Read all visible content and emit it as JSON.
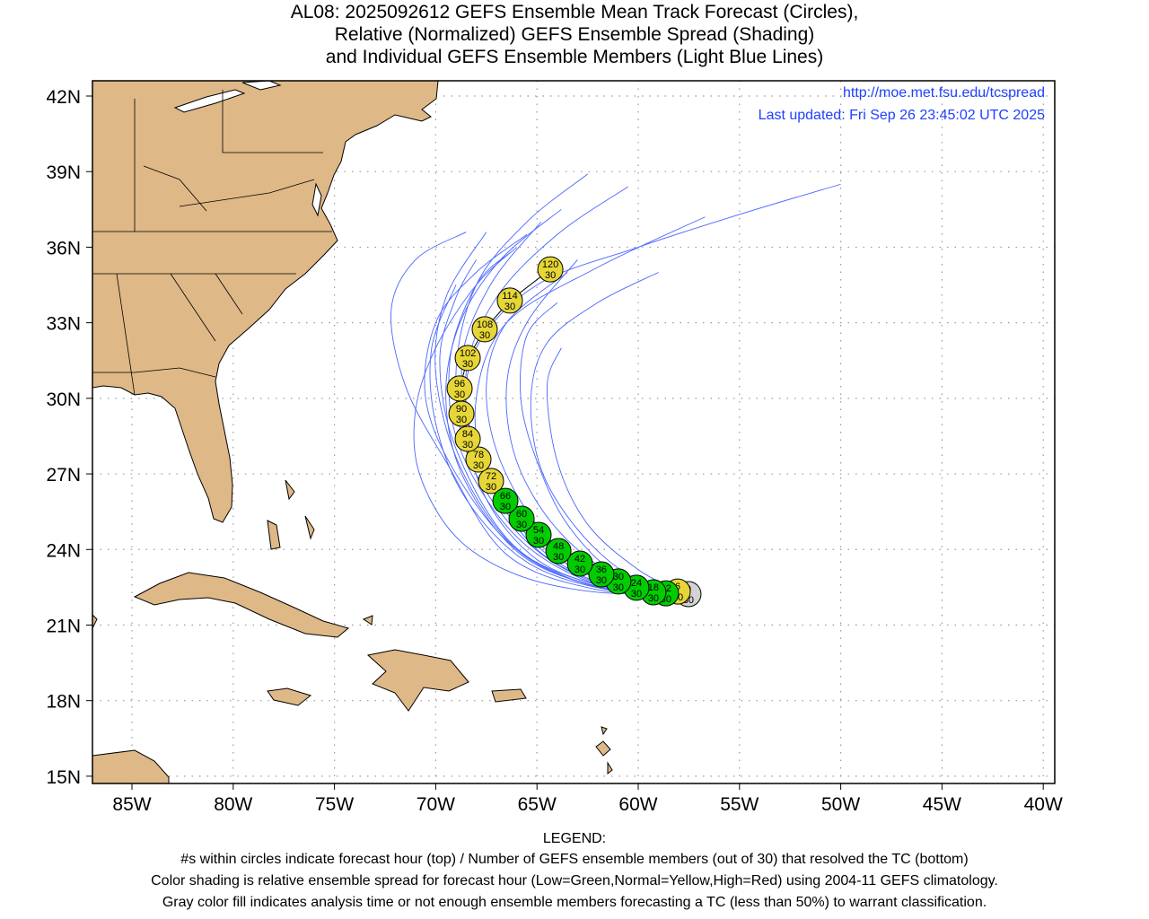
{
  "title": {
    "line1": "AL08: 2025092612 GEFS Ensemble Mean Track Forecast (Circles),",
    "line2": "Relative (Normalized) GEFS Ensemble Spread (Shading)",
    "line3": "and Individual GEFS Ensemble Members (Light Blue Lines)"
  },
  "map_info": {
    "url": "http://moe.met.fsu.edu/tcspread",
    "updated": "Last updated: Fri Sep 26 23:45:02 UTC 2025"
  },
  "legend": {
    "heading": "LEGEND:",
    "line1": "#s within circles indicate forecast hour (top) / Number of GEFS ensemble members (out of 30) that resolved the TC (bottom)",
    "line2": "Color shading is relative ensemble spread for forecast hour (Low=Green,Normal=Yellow,High=Red) using 2004-11 GEFS climatology.",
    "line3": "Gray color fill indicates analysis time or not enough ensemble members forecasting a TC (less than 50%) to warrant classification."
  },
  "colors": {
    "low": "#00cc00",
    "normal": "#e6d637",
    "high": "#ff0000",
    "gray": "#d3d3d3",
    "member": "#4a66ff",
    "land": "#deb887",
    "link": "#2040ff"
  },
  "chart_data": {
    "type": "map-track",
    "lon_range": [
      -87,
      -39.4
    ],
    "lat_range": [
      14.7,
      42.6
    ],
    "lon_ticks": [
      {
        "v": -85,
        "label": "85W"
      },
      {
        "v": -80,
        "label": "80W"
      },
      {
        "v": -75,
        "label": "75W"
      },
      {
        "v": -70,
        "label": "70W"
      },
      {
        "v": -65,
        "label": "65W"
      },
      {
        "v": -60,
        "label": "60W"
      },
      {
        "v": -55,
        "label": "55W"
      },
      {
        "v": -50,
        "label": "50W"
      },
      {
        "v": -45,
        "label": "45W"
      },
      {
        "v": -40,
        "label": "40W"
      }
    ],
    "lat_ticks": [
      {
        "v": 42,
        "label": "42N"
      },
      {
        "v": 39,
        "label": "39N"
      },
      {
        "v": 36,
        "label": "36N"
      },
      {
        "v": 33,
        "label": "33N"
      },
      {
        "v": 30,
        "label": "30N"
      },
      {
        "v": 27,
        "label": "27N"
      },
      {
        "v": 24,
        "label": "24N"
      },
      {
        "v": 21,
        "label": "21N"
      },
      {
        "v": 18,
        "label": "18N"
      },
      {
        "v": 15,
        "label": "15N"
      }
    ],
    "grid": true,
    "track": [
      {
        "hour": "0",
        "members": "30",
        "lon": -57.52,
        "lat": 22.23,
        "spread": "gray"
      },
      {
        "hour": "6",
        "members": "30",
        "lon": -58.05,
        "lat": 22.33,
        "spread": "normal"
      },
      {
        "hour": "12",
        "members": "30",
        "lon": -58.63,
        "lat": 22.26,
        "spread": "low"
      },
      {
        "hour": "18",
        "members": "30",
        "lon": -59.25,
        "lat": 22.3,
        "spread": "low"
      },
      {
        "hour": "24",
        "members": "30",
        "lon": -60.09,
        "lat": 22.48,
        "spread": "low"
      },
      {
        "hour": "30",
        "members": "30",
        "lon": -60.98,
        "lat": 22.73,
        "spread": "low"
      },
      {
        "hour": "36",
        "members": "30",
        "lon": -61.82,
        "lat": 23.01,
        "spread": "low"
      },
      {
        "hour": "42",
        "members": "30",
        "lon": -62.88,
        "lat": 23.44,
        "spread": "low"
      },
      {
        "hour": "48",
        "members": "30",
        "lon": -63.94,
        "lat": 23.94,
        "spread": "low"
      },
      {
        "hour": "54",
        "members": "30",
        "lon": -64.92,
        "lat": 24.58,
        "spread": "low"
      },
      {
        "hour": "60",
        "members": "30",
        "lon": -65.76,
        "lat": 25.22,
        "spread": "low"
      },
      {
        "hour": "66",
        "members": "30",
        "lon": -66.56,
        "lat": 25.93,
        "spread": "low"
      },
      {
        "hour": "72",
        "members": "30",
        "lon": -67.27,
        "lat": 26.72,
        "spread": "normal"
      },
      {
        "hour": "78",
        "members": "30",
        "lon": -67.89,
        "lat": 27.57,
        "spread": "normal"
      },
      {
        "hour": "84",
        "members": "30",
        "lon": -68.42,
        "lat": 28.39,
        "spread": "normal"
      },
      {
        "hour": "90",
        "members": "30",
        "lon": -68.73,
        "lat": 29.39,
        "spread": "normal"
      },
      {
        "hour": "96",
        "members": "30",
        "lon": -68.82,
        "lat": 30.39,
        "spread": "normal"
      },
      {
        "hour": "102",
        "members": "30",
        "lon": -68.42,
        "lat": 31.6,
        "spread": "normal"
      },
      {
        "hour": "108",
        "members": "30",
        "lon": -67.58,
        "lat": 32.74,
        "spread": "normal"
      },
      {
        "hour": "114",
        "members": "30",
        "lon": -66.34,
        "lat": 33.88,
        "spread": "normal"
      },
      {
        "hour": "120",
        "members": "30",
        "lon": -64.34,
        "lat": 35.12,
        "spread": "normal"
      }
    ],
    "ensemble_members": [
      [
        [
          -57.8,
          22.3
        ],
        [
          -62,
          22.6
        ],
        [
          -66,
          24
        ],
        [
          -69,
          27
        ],
        [
          -70.5,
          30
        ],
        [
          -70,
          33
        ],
        [
          -68,
          35
        ],
        [
          -65.5,
          36.5
        ]
      ],
      [
        [
          -57.8,
          22.3
        ],
        [
          -62,
          22.4
        ],
        [
          -66.5,
          23.8
        ],
        [
          -69.5,
          27.5
        ],
        [
          -71.5,
          30.5
        ],
        [
          -72.2,
          33.5
        ],
        [
          -71,
          35.5
        ],
        [
          -68.5,
          36.6
        ]
      ],
      [
        [
          -57.8,
          22.3
        ],
        [
          -61.5,
          22.5
        ],
        [
          -65,
          23.6
        ],
        [
          -67.5,
          26
        ],
        [
          -68.5,
          29
        ],
        [
          -68,
          32
        ],
        [
          -65,
          34.5
        ],
        [
          -60,
          36
        ],
        [
          -55,
          37.3
        ],
        [
          -50,
          38.5
        ]
      ],
      [
        [
          -57.8,
          22.3
        ],
        [
          -61.5,
          22.6
        ],
        [
          -65,
          24
        ],
        [
          -67.5,
          27
        ],
        [
          -68,
          30
        ],
        [
          -66.5,
          33
        ],
        [
          -62,
          35.2
        ],
        [
          -56.7,
          37.2
        ]
      ],
      [
        [
          -57.8,
          22.3
        ],
        [
          -61.5,
          22.7
        ],
        [
          -65,
          24.3
        ],
        [
          -67.8,
          27.5
        ],
        [
          -68.5,
          31
        ],
        [
          -67,
          34
        ],
        [
          -64,
          36.5
        ],
        [
          -60.5,
          38.4
        ]
      ],
      [
        [
          -57.8,
          22.3
        ],
        [
          -61.8,
          22.6
        ],
        [
          -65.5,
          24.3
        ],
        [
          -68.3,
          27.5
        ],
        [
          -69,
          31
        ],
        [
          -68,
          34.5
        ],
        [
          -65.5,
          37
        ],
        [
          -62.5,
          38.9
        ]
      ],
      [
        [
          -57.8,
          22.3
        ],
        [
          -62,
          22.6
        ],
        [
          -66,
          24.5
        ],
        [
          -68.8,
          28
        ],
        [
          -69.3,
          31.5
        ],
        [
          -68,
          34.5
        ],
        [
          -66.3,
          35.8
        ]
      ],
      [
        [
          -57.8,
          22.3
        ],
        [
          -61,
          23
        ],
        [
          -63.5,
          25
        ],
        [
          -65,
          27.5
        ],
        [
          -65.8,
          30
        ],
        [
          -65.5,
          32.5
        ],
        [
          -64,
          33.8
        ]
      ],
      [
        [
          -57.8,
          22.3
        ],
        [
          -60,
          23.2
        ],
        [
          -62.5,
          25
        ],
        [
          -64,
          27.5
        ],
        [
          -64.5,
          30.5
        ],
        [
          -63.8,
          32
        ]
      ],
      [
        [
          -57.8,
          22.3
        ],
        [
          -62,
          22.5
        ],
        [
          -66,
          24
        ],
        [
          -68.8,
          27.3
        ],
        [
          -70,
          31
        ],
        [
          -69.5,
          34
        ],
        [
          -67.5,
          36.6
        ]
      ],
      [
        [
          -57.8,
          22.3
        ],
        [
          -61.3,
          22.8
        ],
        [
          -64.5,
          24.5
        ],
        [
          -66.8,
          27.5
        ],
        [
          -67.5,
          30.5
        ],
        [
          -66.5,
          33
        ],
        [
          -63.5,
          35
        ]
      ],
      [
        [
          -57.8,
          22.3
        ],
        [
          -62,
          22.5
        ],
        [
          -66.2,
          24.2
        ],
        [
          -69,
          28
        ],
        [
          -69.8,
          31.5
        ],
        [
          -69,
          34
        ],
        [
          -68,
          35.5
        ]
      ],
      [
        [
          -57.8,
          22.3
        ],
        [
          -61.7,
          22.6
        ],
        [
          -65.3,
          24.4
        ],
        [
          -68,
          28
        ],
        [
          -68.7,
          31.5
        ],
        [
          -67.3,
          34.5
        ],
        [
          -64.8,
          37
        ]
      ],
      [
        [
          -57.8,
          22.3
        ],
        [
          -62,
          22.3
        ],
        [
          -66,
          23
        ],
        [
          -69,
          24.5
        ],
        [
          -70.8,
          27
        ],
        [
          -71,
          29.5
        ],
        [
          -70,
          32
        ],
        [
          -68,
          34.5
        ],
        [
          -66,
          36
        ]
      ],
      [
        [
          -57.8,
          22.3
        ],
        [
          -61,
          22.9
        ],
        [
          -64,
          24.8
        ],
        [
          -66,
          27.5
        ],
        [
          -66.5,
          30.5
        ],
        [
          -65.5,
          33
        ],
        [
          -63,
          35.5
        ]
      ],
      [
        [
          -57.8,
          22.3
        ],
        [
          -61.5,
          22.4
        ],
        [
          -65.5,
          23.5
        ],
        [
          -68.5,
          26
        ],
        [
          -70,
          29
        ],
        [
          -70.2,
          32
        ],
        [
          -69,
          34.5
        ]
      ],
      [
        [
          -57.8,
          22.3
        ],
        [
          -60.5,
          23
        ],
        [
          -63,
          24.8
        ],
        [
          -64.8,
          27.2
        ],
        [
          -65.3,
          30
        ],
        [
          -64.5,
          32.2
        ],
        [
          -62,
          33.8
        ],
        [
          -59,
          35
        ]
      ],
      [
        [
          -57.8,
          22.3
        ],
        [
          -61.8,
          22.5
        ],
        [
          -65.8,
          23.8
        ],
        [
          -68.6,
          26.8
        ],
        [
          -69.5,
          30
        ],
        [
          -68.8,
          33
        ],
        [
          -66.8,
          35.5
        ],
        [
          -63.8,
          37.5
        ]
      ]
    ]
  }
}
